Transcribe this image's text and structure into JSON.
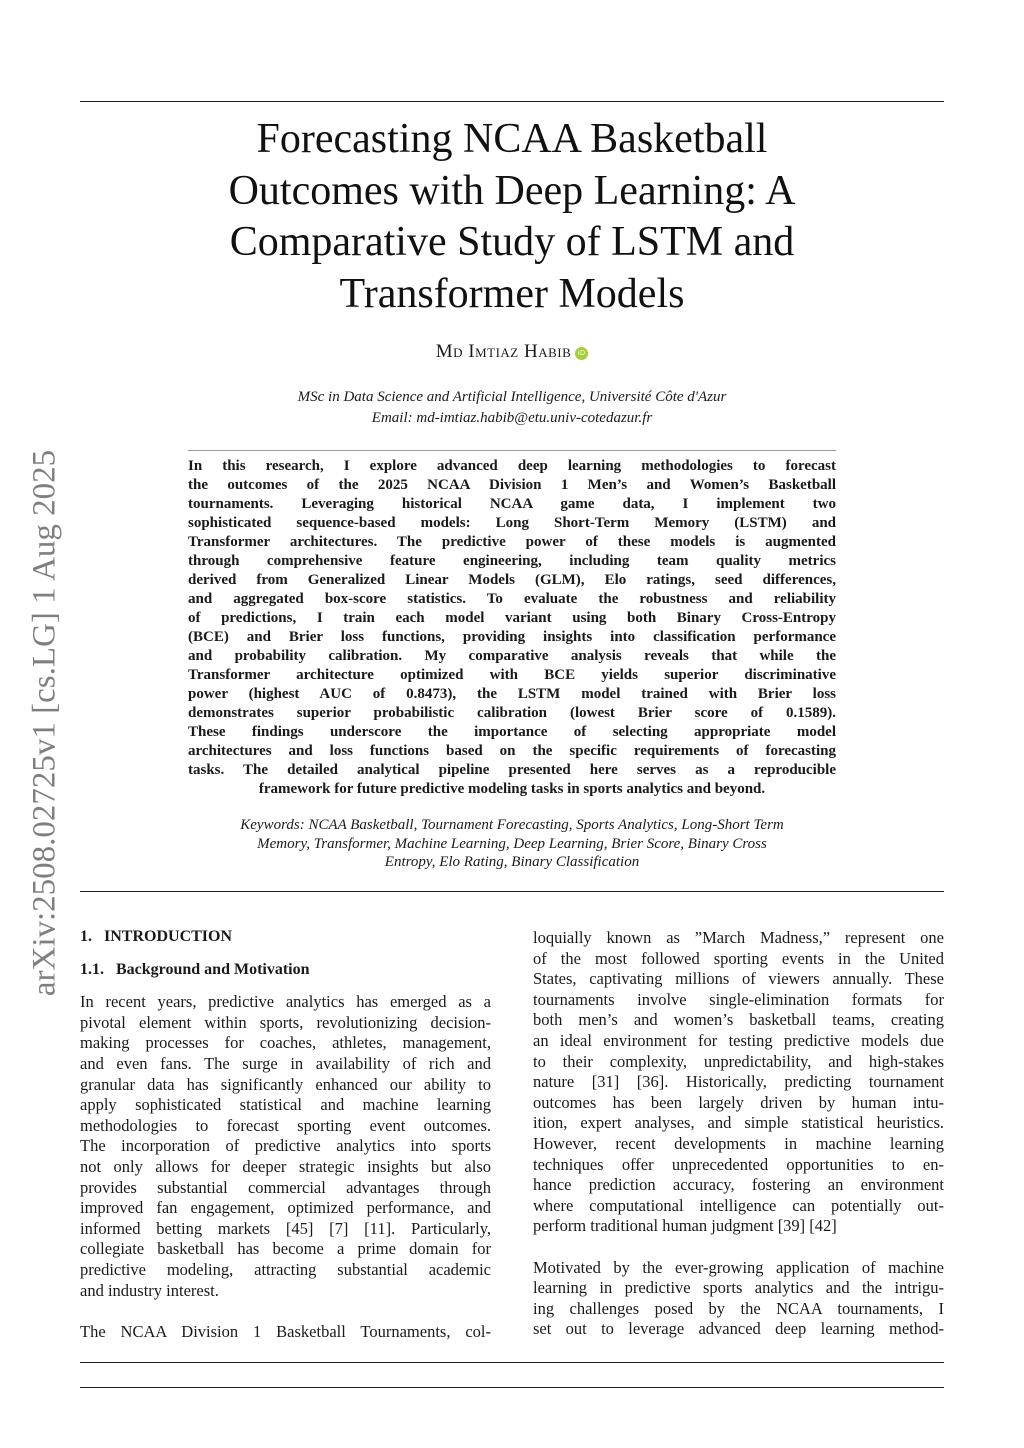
{
  "side_stamp": "arXiv:2508.02725v1  [cs.LG]  1 Aug 2025",
  "title_lines": [
    "Forecasting NCAA Basketball",
    "Outcomes with Deep Learning: A",
    "Comparative Study of LSTM and",
    "Transformer Models"
  ],
  "author": "Md Imtiaz Habib",
  "orcid_icon": "orcid-icon",
  "orcid_label": "iD",
  "affiliation": "MSc in Data Science and Artificial Intelligence, Université Côte d'Azur",
  "email": "Email: md-imtiaz.habib@etu.univ-cotedazur.fr",
  "abstract_lines": [
    "In this research, I explore advanced deep learning methodologies to forecast",
    "the outcomes of the 2025 NCAA Division 1 Men’s and Women’s Basketball",
    "tournaments.   Leveraging historical NCAA game data, I implement two",
    "sophisticated sequence-based models: Long Short-Term Memory (LSTM) and",
    "Transformer architectures. The predictive power of these models is augmented",
    "through comprehensive feature engineering, including team quality metrics",
    "derived from Generalized Linear Models (GLM), Elo ratings, seed differences,",
    "and aggregated box-score statistics.  To evaluate the robustness and reliability",
    "of predictions, I train each model variant using both Binary Cross-Entropy",
    "(BCE) and Brier loss functions, providing insights into classification performance",
    "and probability calibration.   My comparative analysis reveals that while the",
    "Transformer architecture optimized with BCE yields superior discriminative",
    "power (highest AUC of 0.8473), the LSTM model trained with Brier loss",
    "demonstrates superior probabilistic calibration (lowest Brier score of 0.1589).",
    "These findings underscore the importance of selecting appropriate model",
    "architectures and loss functions based on the specific requirements of forecasting",
    "tasks.  The detailed analytical pipeline presented here serves as a reproducible",
    "framework for future predictive modeling tasks in sports analytics and beyond."
  ],
  "keywords_lines": [
    "Keywords: NCAA Basketball, Tournament Forecasting, Sports Analytics, Long-Short Term",
    "Memory, Transformer, Machine Learning, Deep Learning, Brier Score, Binary Cross",
    "Entropy, Elo Rating, Binary Classification"
  ],
  "section": {
    "number": "1.",
    "title": "INTRODUCTION"
  },
  "subsection": {
    "number": "1.1.",
    "title": "Background and Motivation"
  },
  "left_paragraphs": [
    [
      "In recent years, predictive analytics has emerged as a",
      "pivotal element within sports, revolutionizing decision-",
      "making processes for coaches, athletes, management,",
      "and even fans.  The surge in availability of rich and",
      "granular data has significantly enhanced our ability to",
      "apply sophisticated statistical and machine learning",
      "methodologies to forecast sporting event outcomes.",
      "The incorporation of predictive analytics into sports",
      "not only allows for deeper strategic insights but also",
      "provides substantial commercial advantages through",
      "improved fan engagement, optimized performance, and",
      "informed betting markets [45] [7] [11].  Particularly,",
      "collegiate basketball has become a prime domain for",
      "predictive modeling, attracting substantial academic",
      "and industry interest."
    ],
    [
      "The NCAA Division 1 Basketball Tournaments, col-"
    ]
  ],
  "right_paragraphs": [
    [
      "loquially known as ”March Madness,” represent one",
      "of the most followed sporting events in the United",
      "States, captivating millions of viewers annually.  These",
      "tournaments involve single-elimination formats for",
      "both men’s and women’s basketball teams, creating",
      "an ideal environment for testing predictive models due",
      "to their complexity, unpredictability, and high-stakes",
      "nature [31] [36].  Historically, predicting tournament",
      "outcomes has been largely driven by human intu-",
      "ition, expert analyses, and simple statistical heuristics.",
      "However, recent developments in machine learning",
      "techniques offer unprecedented opportunities to en-",
      "hance prediction accuracy, fostering an environment",
      "where computational intelligence can potentially out-",
      "perform traditional human judgment [39] [42]"
    ],
    [
      "Motivated by the ever-growing application of machine",
      "learning in predictive sports analytics and the intrigu-",
      "ing challenges posed by the NCAA tournaments, I",
      "set out to leverage advanced deep learning method-"
    ]
  ]
}
